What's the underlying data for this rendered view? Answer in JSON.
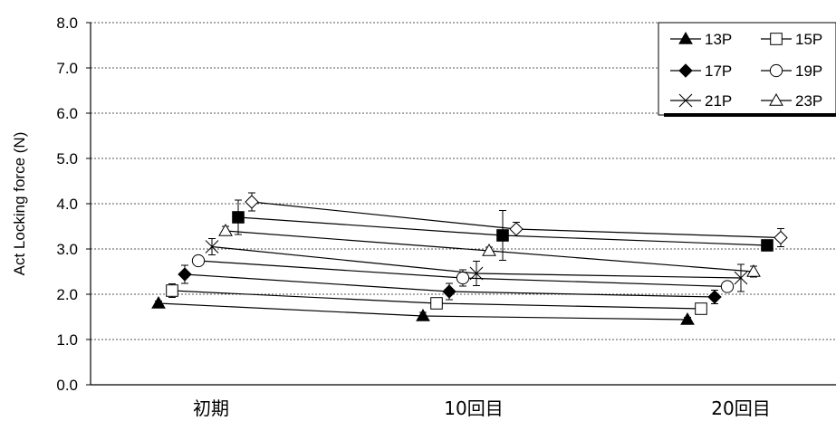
{
  "chart_data": {
    "type": "line",
    "ylabel": "Act  Locking force (N)",
    "ylim": [
      0,
      8
    ],
    "y_ticks": [
      "0.0",
      "1.0",
      "2.0",
      "3.0",
      "4.0",
      "5.0",
      "6.0",
      "7.0",
      "8.0"
    ],
    "categories": [
      "初期",
      "10回目",
      "20回目"
    ],
    "grid": "horizontal dashed",
    "legend_position": "top-right",
    "series": [
      {
        "name": "13P",
        "marker": "triangle-filled",
        "values": [
          1.8,
          1.52,
          1.44
        ],
        "errors": [
          0.05,
          0.08,
          0.05
        ]
      },
      {
        "name": "15P",
        "marker": "square-open",
        "values": [
          2.08,
          1.8,
          1.68
        ],
        "errors": [
          0.15,
          0.1,
          0.06
        ]
      },
      {
        "name": "17P",
        "marker": "diamond-filled",
        "values": [
          2.44,
          2.06,
          1.94
        ],
        "errors": [
          0.2,
          0.18,
          0.15
        ]
      },
      {
        "name": "19P",
        "marker": "circle-open",
        "values": [
          2.74,
          2.36,
          2.17
        ],
        "errors": [
          0.1,
          0.18,
          0.1
        ]
      },
      {
        "name": "21P",
        "marker": "x",
        "values": [
          3.05,
          2.46,
          2.36
        ],
        "errors": [
          0.18,
          0.27,
          0.3
        ]
      },
      {
        "name": "23P",
        "marker": "triangle-open",
        "values": [
          3.4,
          2.96,
          2.5
        ],
        "errors": [
          0.1,
          0.08,
          0.12
        ]
      },
      {
        "name": "",
        "marker": "square-filled",
        "values": [
          3.7,
          3.3,
          3.08
        ],
        "errors": [
          0.38,
          0.55,
          0.12
        ]
      },
      {
        "name": "",
        "marker": "diamond-open",
        "values": [
          4.04,
          3.44,
          3.25
        ],
        "errors": [
          0.2,
          0.15,
          0.2
        ]
      }
    ]
  }
}
